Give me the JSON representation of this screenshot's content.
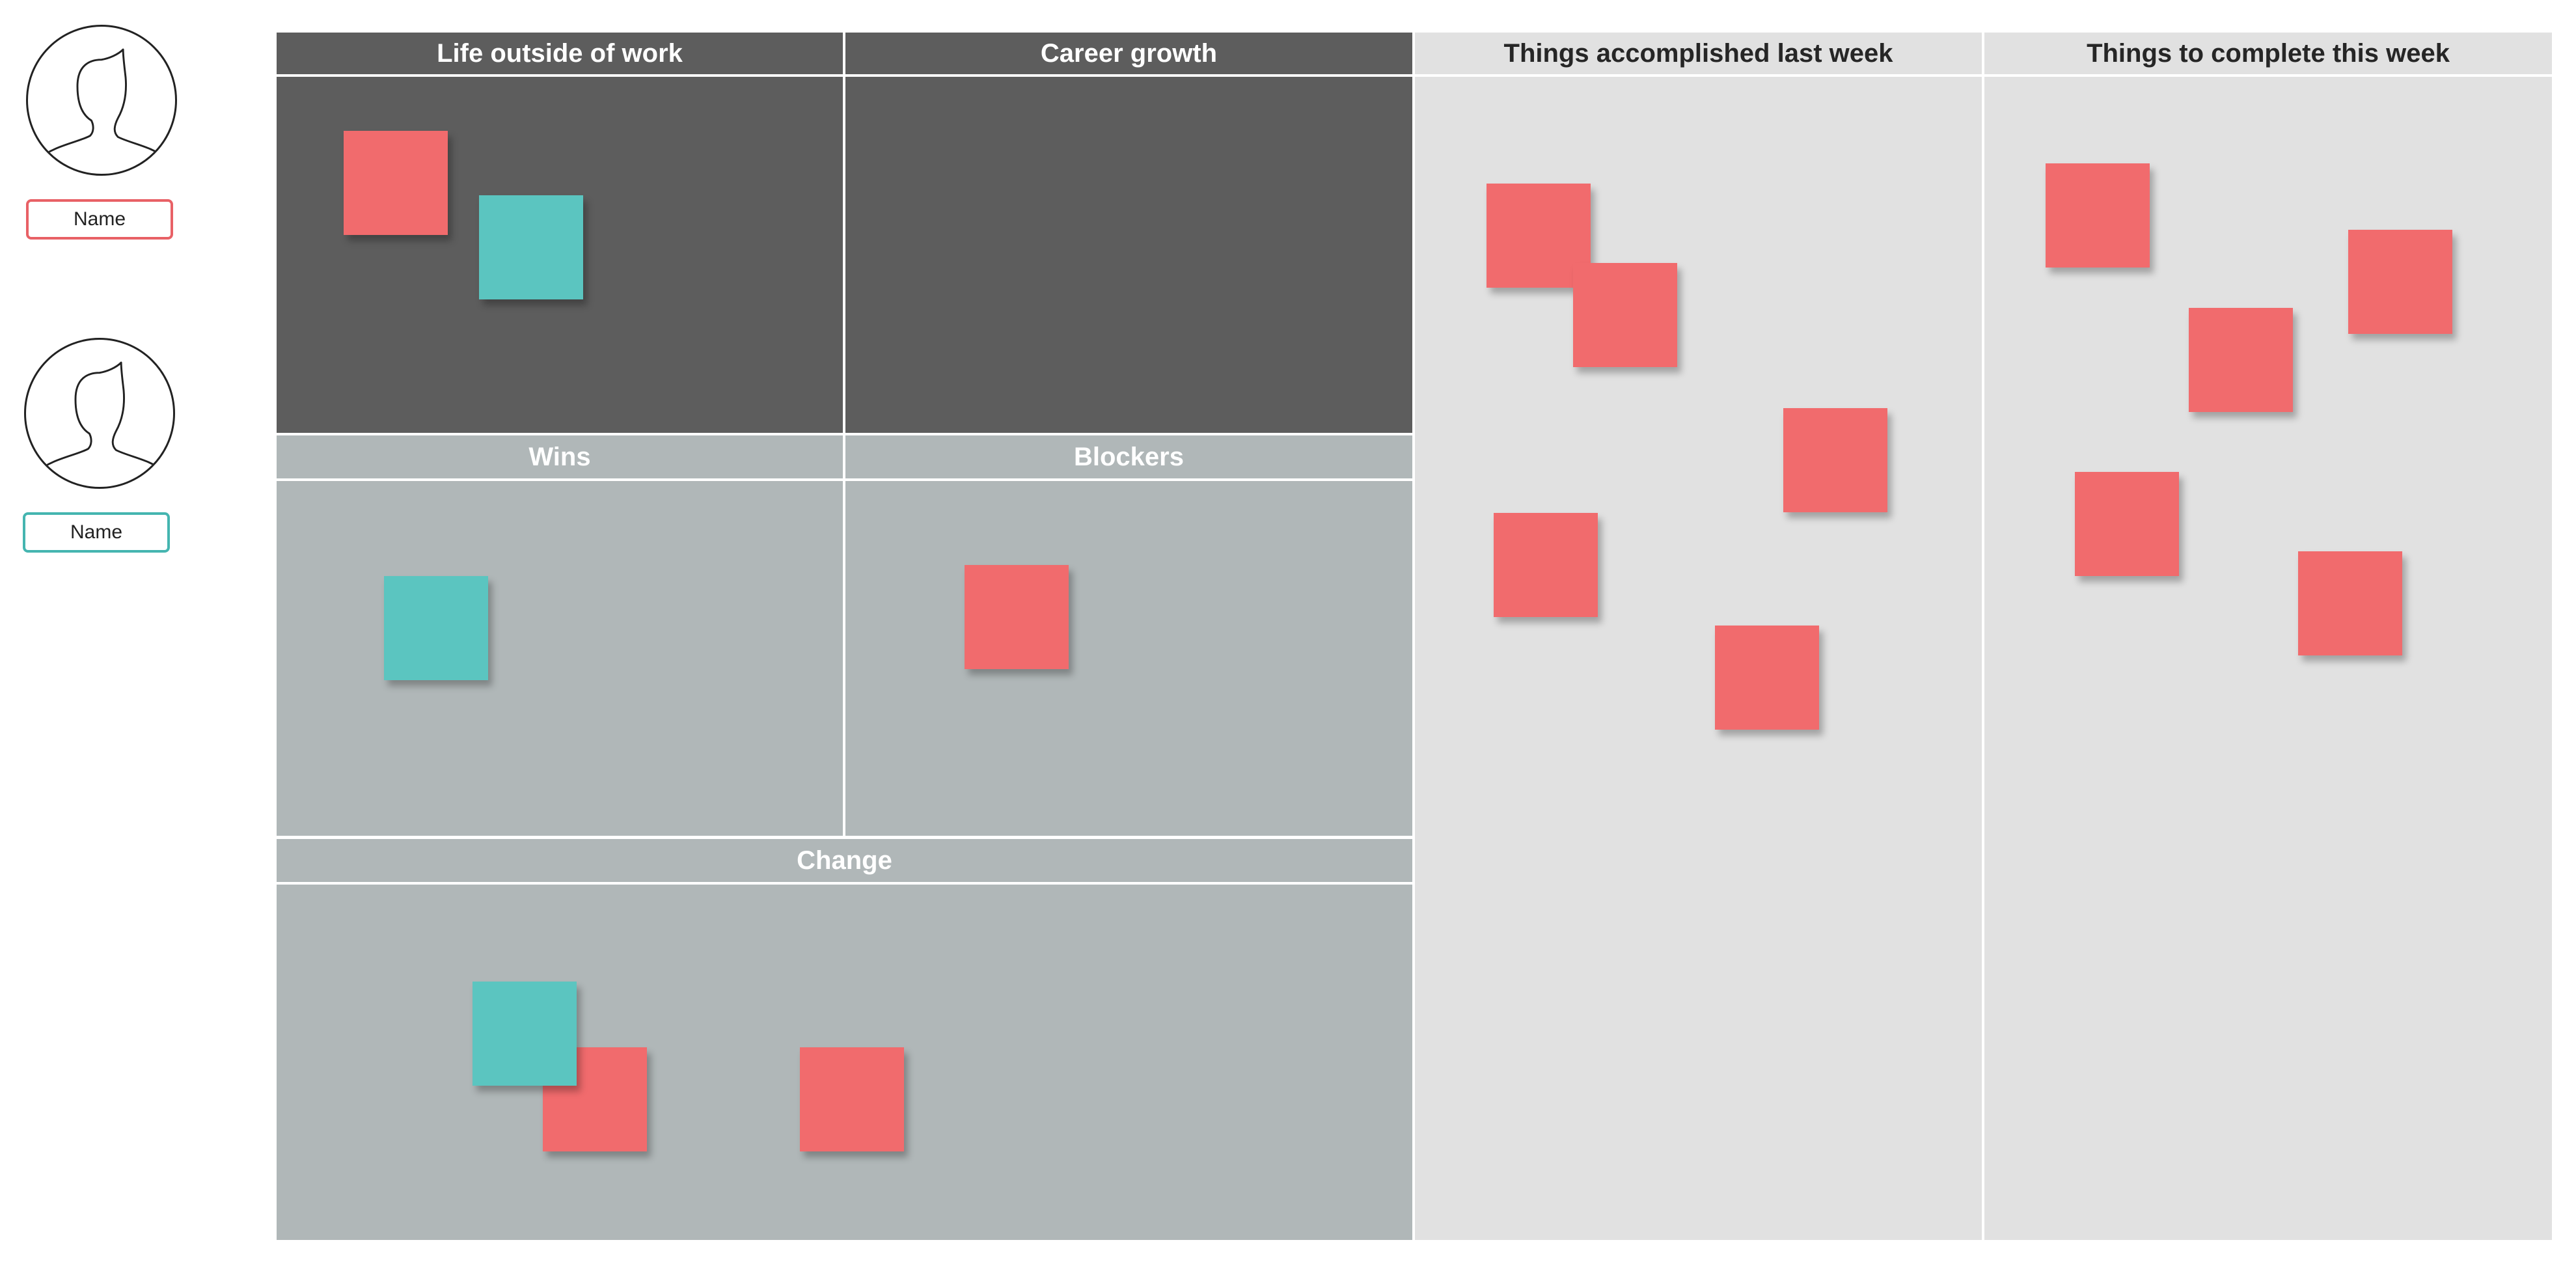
{
  "colors": {
    "dark_panel": "#5d5d5d",
    "mid_panel": "#b0b7b8",
    "light_panel": "#e1e1e1",
    "grid_line": "#ffffff",
    "note_red": "#f16b6d",
    "note_teal": "#5bc5c0",
    "header_text_light": "#ffffff",
    "header_text_dark": "#262626"
  },
  "people": [
    {
      "name_label": "Name",
      "accent": "#e86166",
      "icon": "person-silhouette-icon"
    },
    {
      "name_label": "Name",
      "accent": "#45b5b0",
      "icon": "person-silhouette-icon"
    }
  ],
  "board": {
    "life_outside_work": {
      "title": "Life outside of work",
      "notes": [
        "red",
        "teal"
      ]
    },
    "career_growth": {
      "title": "Career growth",
      "notes": []
    },
    "wins": {
      "title": "Wins",
      "notes": [
        "teal"
      ]
    },
    "blockers": {
      "title": "Blockers",
      "notes": [
        "red"
      ]
    },
    "change": {
      "title": "Change",
      "notes": [
        "teal",
        "red",
        "red"
      ]
    },
    "accomplished_last_week": {
      "title": "Things accomplished last week",
      "notes": [
        "red",
        "red",
        "red",
        "red",
        "red"
      ]
    },
    "complete_this_week": {
      "title": "Things to complete this week",
      "notes": [
        "red",
        "red",
        "red",
        "red",
        "red"
      ]
    }
  }
}
